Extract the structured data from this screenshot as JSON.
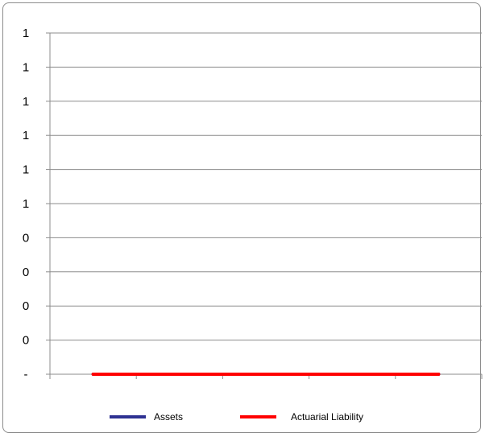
{
  "chart_data": {
    "type": "line",
    "title": "",
    "xlabel": "",
    "ylabel": "",
    "y_tick_labels": [
      "1",
      "1",
      "1",
      "1",
      "1",
      "1",
      "0",
      "0",
      "0",
      "0",
      "-"
    ],
    "x_categories": [
      "",
      "",
      "",
      "",
      ""
    ],
    "ylim": [
      0,
      1
    ],
    "grid": true,
    "legend_position": "bottom",
    "series": [
      {
        "name": "Assets",
        "color": "#2e3192",
        "values": [
          0,
          0,
          0,
          0,
          0
        ]
      },
      {
        "name": "Actuarial Liability",
        "color": "#ff0000",
        "values": [
          0,
          0,
          0,
          0,
          0
        ]
      }
    ]
  }
}
